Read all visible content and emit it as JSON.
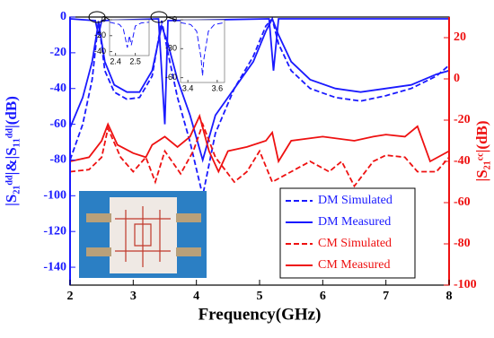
{
  "chart_data": [
    {
      "type": "line",
      "xlabel": "Frequency(GHz)",
      "ylabel": "|S₂₁ᵈᵈ|&|S₁₁ᵈᵈ|(dB)",
      "y2label": "|S₂₁ᶜᶜ|(dB)",
      "xlim": [
        2,
        8
      ],
      "xticks": [
        2,
        3,
        4,
        5,
        6,
        7,
        8
      ],
      "ylim": [
        -150,
        0
      ],
      "yticks": [
        0,
        -20,
        -40,
        -60,
        -80,
        -100,
        -120,
        -140
      ],
      "ycolor": "#1a1aff",
      "y2lim": [
        -100,
        30
      ],
      "y2ticks": [
        20,
        0,
        -20,
        -40,
        -60,
        -80,
        -100
      ],
      "y2color": "#ee1111",
      "legend": "lower right",
      "series": [
        {
          "name": "DM Simulated",
          "color": "#1a1aff",
          "dash": "dashed",
          "x": [
            2.0,
            2.2,
            2.35,
            2.45,
            2.55,
            2.7,
            2.9,
            3.1,
            3.3,
            3.45,
            3.55,
            3.7,
            3.9,
            4.1,
            4.3,
            4.6,
            4.9,
            5.1,
            5.2,
            5.3,
            5.5,
            5.8,
            6.2,
            6.6,
            7.0,
            7.4,
            7.8,
            8.0
          ],
          "values": [
            -80,
            -60,
            -35,
            -2,
            -30,
            -42,
            -46,
            -45,
            -33,
            -2,
            -20,
            -45,
            -70,
            -100,
            -65,
            -40,
            -22,
            -5,
            -1,
            -15,
            -30,
            -40,
            -45,
            -47,
            -44,
            -40,
            -33,
            -27
          ]
        },
        {
          "name": "DM Measured",
          "color": "#1a1aff",
          "dash": "solid",
          "x": [
            2.0,
            2.2,
            2.35,
            2.45,
            2.55,
            2.7,
            2.9,
            3.1,
            3.3,
            3.45,
            3.55,
            3.7,
            3.9,
            4.1,
            4.3,
            4.6,
            4.9,
            5.1,
            5.2,
            5.3,
            5.5,
            5.8,
            6.2,
            6.6,
            7.0,
            7.4,
            7.8,
            8.0
          ],
          "values": [
            -62,
            -45,
            -25,
            -3,
            -25,
            -38,
            -42,
            -42,
            -30,
            -5,
            -15,
            -35,
            -55,
            -80,
            -55,
            -40,
            -25,
            -8,
            -1,
            -10,
            -25,
            -35,
            -40,
            -42,
            -40,
            -38,
            -32,
            -30
          ]
        },
        {
          "color": "#1a1aff",
          "dash": "solid",
          "x": [
            2.0,
            2.4,
            2.45,
            2.5,
            3.4,
            3.5,
            3.55,
            5.15,
            5.22,
            5.3,
            8.0
          ],
          "values": [
            -1,
            -2,
            -10,
            -2,
            -1,
            -60,
            -2,
            -1,
            -30,
            -1,
            -1
          ]
        },
        {
          "name": "CM Simulated",
          "color": "#ee1111",
          "dash": "dashed",
          "axis": "y2",
          "x": [
            2.0,
            2.3,
            2.5,
            2.6,
            2.8,
            3.0,
            3.2,
            3.35,
            3.5,
            3.75,
            3.95,
            4.1,
            4.3,
            4.6,
            4.8,
            5.0,
            5.2,
            5.5,
            5.8,
            6.1,
            6.3,
            6.5,
            6.8,
            7.0,
            7.3,
            7.5,
            7.8,
            8.0
          ],
          "values": [
            -45,
            -44,
            -38,
            -24,
            -38,
            -45,
            -38,
            -50,
            -35,
            -46,
            -35,
            -22,
            -38,
            -50,
            -45,
            -35,
            -50,
            -45,
            -40,
            -45,
            -40,
            -52,
            -40,
            -37,
            -38,
            -45,
            -45,
            -38
          ]
        },
        {
          "name": "CM Measured",
          "color": "#ee1111",
          "dash": "solid",
          "axis": "y2",
          "x": [
            2.0,
            2.3,
            2.5,
            2.6,
            2.75,
            3.0,
            3.2,
            3.3,
            3.5,
            3.7,
            3.9,
            4.05,
            4.2,
            4.35,
            4.5,
            4.8,
            5.1,
            5.2,
            5.3,
            5.5,
            6.0,
            6.5,
            6.8,
            7.0,
            7.3,
            7.5,
            7.7,
            8.0
          ],
          "values": [
            -40,
            -38,
            -30,
            -22,
            -32,
            -36,
            -38,
            -32,
            -28,
            -33,
            -28,
            -18,
            -35,
            -45,
            -35,
            -33,
            -30,
            -26,
            -40,
            -30,
            -28,
            -30,
            -28,
            -27,
            -28,
            -23,
            -40,
            -35
          ]
        }
      ]
    },
    {
      "type": "line",
      "xlim": [
        2.37,
        2.57
      ],
      "xticks": [
        2.4,
        2.5
      ],
      "ylim": [
        -45,
        0
      ],
      "yticks": [
        0,
        -20,
        -40
      ],
      "series": [
        {
          "color": "#1a1aff",
          "dash": "dashed",
          "x": [
            2.37,
            2.42,
            2.44,
            2.46,
            2.47,
            2.48,
            2.5,
            2.53,
            2.57
          ],
          "values": [
            -3,
            -6,
            -12,
            -35,
            -20,
            -32,
            -8,
            -4,
            -3
          ]
        }
      ]
    },
    {
      "type": "line",
      "xlim": [
        3.35,
        3.65
      ],
      "xticks": [
        3.4,
        3.6
      ],
      "ylim": [
        -65,
        0
      ],
      "yticks": [
        0,
        -30,
        -60
      ],
      "series": [
        {
          "color": "#1a1aff",
          "dash": "dashed",
          "x": [
            3.35,
            3.42,
            3.46,
            3.49,
            3.5,
            3.51,
            3.54,
            3.58,
            3.65
          ],
          "values": [
            -3,
            -5,
            -12,
            -40,
            -58,
            -40,
            -12,
            -5,
            -3
          ]
        }
      ]
    }
  ]
}
